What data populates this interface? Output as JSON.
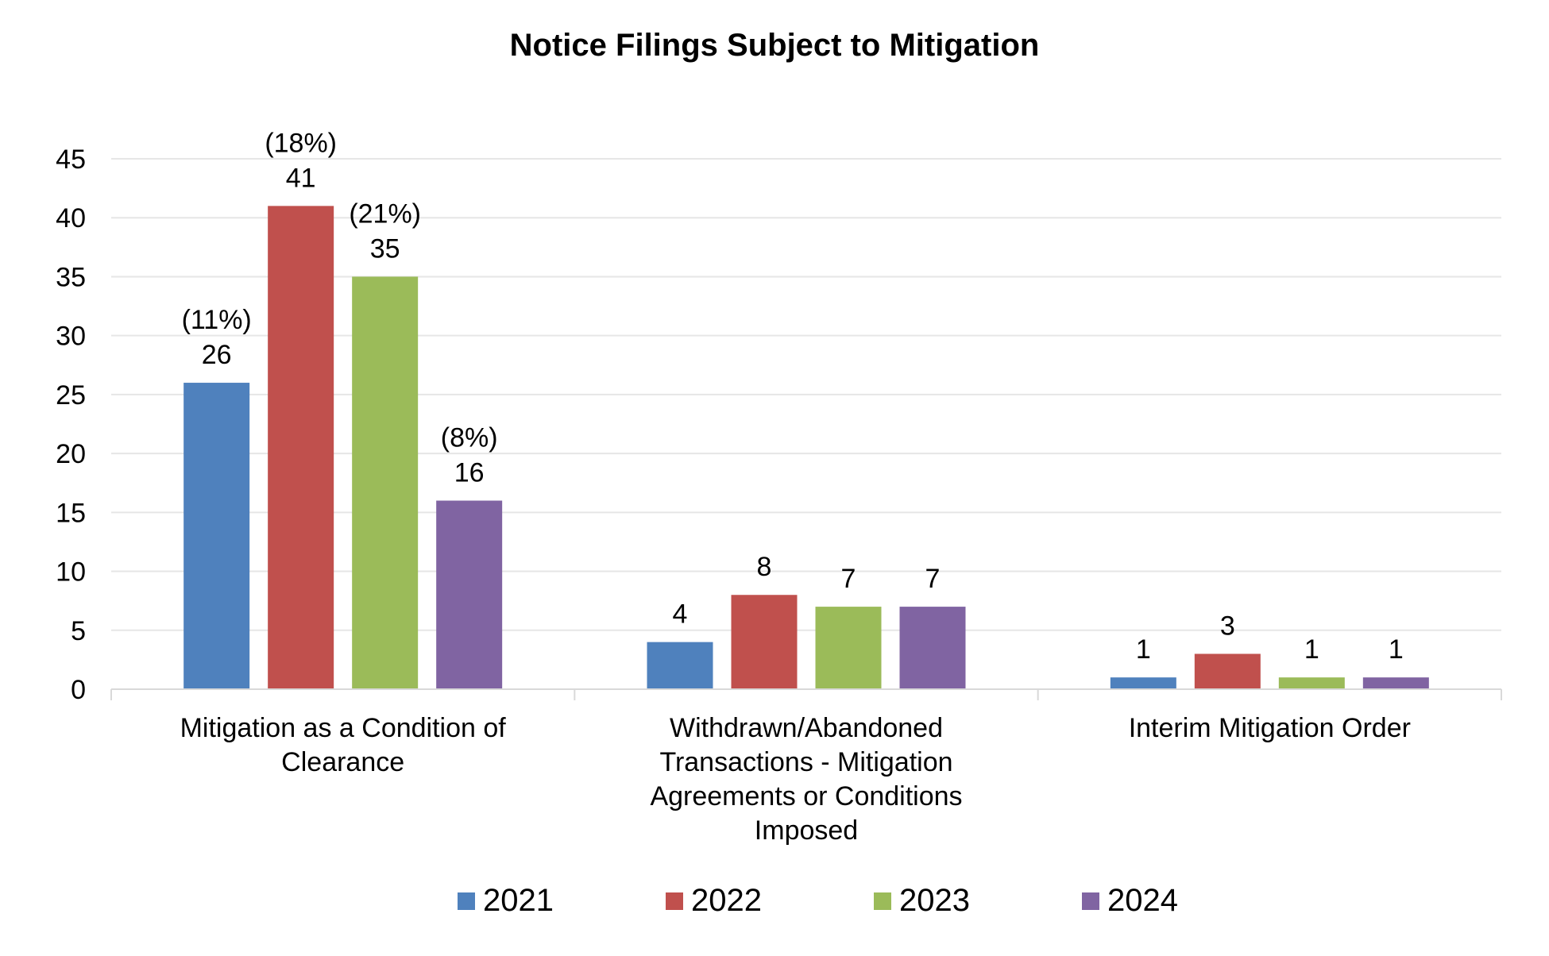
{
  "chart_data": {
    "type": "bar",
    "title": "Notice Filings Subject to Mitigation",
    "xlabel": "",
    "ylabel": "",
    "ylim": [
      0,
      45
    ],
    "yticks": [
      "0",
      "5",
      "10",
      "15",
      "20",
      "25",
      "30",
      "35",
      "40",
      "45"
    ],
    "grid": true,
    "legend_position": "bottom",
    "categories": [
      [
        "Mitigation as a Condition of",
        "Clearance"
      ],
      [
        "Withdrawn/Abandoned",
        "Transactions - Mitigation",
        "Agreements or Conditions",
        "Imposed"
      ],
      [
        "Interim Mitigation Order"
      ]
    ],
    "series": [
      {
        "name": "2021",
        "color": "#4f81bd",
        "values": [
          26,
          4,
          1
        ],
        "labels": [
          "26",
          "4",
          "1"
        ],
        "pct_labels": [
          "(11%)",
          "",
          ""
        ]
      },
      {
        "name": "2022",
        "color": "#c0504d",
        "values": [
          41,
          8,
          3
        ],
        "labels": [
          "41",
          "8",
          "3"
        ],
        "pct_labels": [
          "(18%)",
          "",
          ""
        ]
      },
      {
        "name": "2023",
        "color": "#9bbb59",
        "values": [
          35,
          7,
          1
        ],
        "labels": [
          "35",
          "7",
          "1"
        ],
        "pct_labels": [
          "(21%)",
          "",
          ""
        ]
      },
      {
        "name": "2024",
        "color": "#8064a2",
        "values": [
          16,
          7,
          1
        ],
        "labels": [
          "16",
          "7",
          "1"
        ],
        "pct_labels": [
          "(8%)",
          "",
          ""
        ]
      }
    ]
  }
}
